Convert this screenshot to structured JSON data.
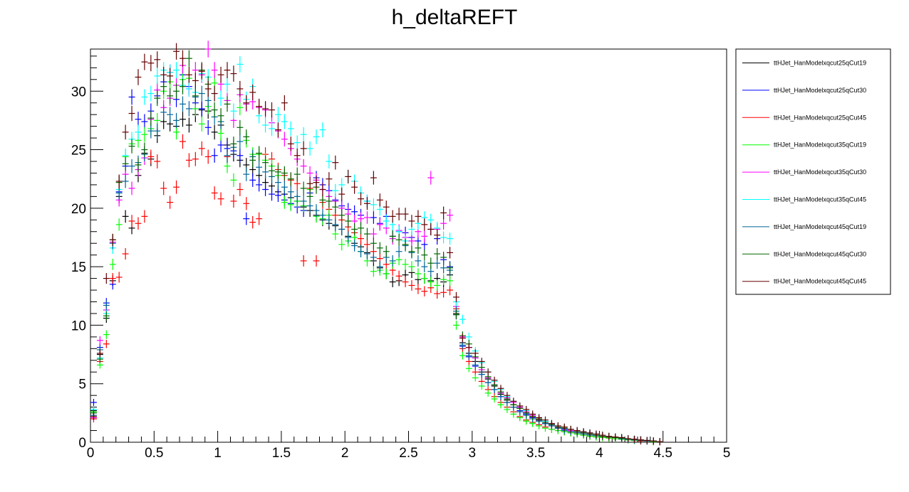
{
  "chart_data": {
    "type": "scatter",
    "title": "h_deltaREFT",
    "xlabel": "",
    "ylabel": "",
    "xlim": [
      0,
      5
    ],
    "ylim": [
      0,
      33.6
    ],
    "x_ticks": [
      "0",
      "0.5",
      "1",
      "1.5",
      "2",
      "2.5",
      "3",
      "3.5",
      "4",
      "4.5",
      "5"
    ],
    "y_ticks": [
      "0",
      "5",
      "10",
      "15",
      "20",
      "25",
      "30"
    ],
    "bin_width": 0.05,
    "error_bars": true,
    "grid": false,
    "legend_position": "right",
    "series": [
      {
        "name": "ttHJet_HanModelxqcut25qCut19",
        "color": "#000000",
        "values": [
          2.7,
          7.5,
          10.6,
          13.8,
          21.0,
          19.3,
          18.3,
          22.8,
          24.7,
          24.2,
          26.2,
          27.4,
          27.2,
          27.0,
          27.6,
          27.1,
          28.0,
          28.4,
          28.3,
          26.5,
          27.1,
          25.4,
          24.6,
          24.1,
          23.7,
          23.3,
          22.8,
          22.2,
          21.9,
          21.4,
          21.2,
          20.9,
          20.6,
          20.1,
          19.8,
          19.4,
          19.0,
          18.7,
          18.5,
          18.2,
          17.6,
          17.0,
          16.7,
          16.2,
          15.5,
          14.9,
          14.4,
          13.7,
          13.8,
          14.3,
          14.5,
          13.9,
          14.0,
          13.8,
          14.0,
          13.7,
          14.3,
          11.0,
          8.5,
          7.6,
          6.9,
          6.0,
          5.4,
          4.8,
          4.1,
          3.6,
          3.2,
          2.9,
          2.5,
          2.2,
          1.9,
          1.6,
          1.5,
          1.3,
          1.1,
          1.0,
          0.9,
          0.8,
          0.7,
          0.6,
          0.5,
          0.5,
          0.4,
          0.35,
          0.3,
          0.25,
          0.2,
          0.15,
          0.1,
          0.05
        ]
      },
      {
        "name": "ttHJet_HanModelxqcut25qCut30",
        "color": "#0000ff",
        "values": [
          3.4,
          8.1,
          11.9,
          13.5,
          21.4,
          23.6,
          29.5,
          27.6,
          27.4,
          28.3,
          29.6,
          30.8,
          31.6,
          29.3,
          31.4,
          30.4,
          29.0,
          28.5,
          26.9,
          24.5,
          25.4,
          25.1,
          24.9,
          24.5,
          19.1,
          22.4,
          22.0,
          21.6,
          21.2,
          21.1,
          20.7,
          20.4,
          20.1,
          19.8,
          21.3,
          22.6,
          22.0,
          21.5,
          20.7,
          20.2,
          19.9,
          19.7,
          19.4,
          20.6,
          19.2,
          18.7,
          19.3,
          17.6,
          18.0,
          17.9,
          17.5,
          17.2,
          16.9,
          18.2,
          17.4,
          15.6,
          15.0,
          10.9,
          8.2,
          7.3,
          6.5,
          5.8,
          5.1,
          4.5,
          3.9,
          3.4,
          3.0,
          2.7,
          2.4,
          2.1,
          1.8,
          1.6,
          1.4,
          1.2,
          1.1,
          1.0,
          0.9,
          0.8,
          0.7,
          0.6,
          0.5,
          0.45,
          0.4,
          0.3,
          0.25,
          0.2,
          0.2,
          0.15,
          0.1,
          0.05
        ]
      },
      {
        "name": "ttHJet_HanModelxqcut25qCut45",
        "color": "#ff0000",
        "values": [
          2.0,
          6.9,
          8.4,
          14.0,
          14.1,
          16.1,
          18.9,
          18.7,
          19.3,
          24.4,
          24.0,
          21.7,
          20.5,
          21.8,
          25.7,
          24.1,
          24.2,
          25.1,
          24.4,
          21.3,
          20.8,
          24.4,
          20.6,
          21.6,
          20.4,
          18.8,
          19.1,
          24.6,
          24.2,
          23.3,
          22.8,
          22.4,
          22.1,
          15.5,
          21.7,
          15.5,
          20.5,
          19.9,
          19.4,
          19.0,
          18.4,
          17.9,
          17.4,
          16.9,
          16.3,
          15.7,
          15.2,
          14.7,
          14.2,
          13.7,
          13.4,
          13.1,
          12.9,
          13.2,
          12.7,
          12.8,
          13.0,
          11.4,
          8.0,
          6.9,
          6.0,
          5.2,
          4.5,
          3.9,
          3.4,
          3.0,
          2.6,
          2.2,
          1.9,
          1.7,
          1.5,
          1.3,
          1.1,
          1.0,
          0.9,
          0.8,
          0.7,
          0.6,
          0.5,
          0.45,
          0.4,
          0.35,
          0.3,
          0.25,
          0.2,
          0.15,
          0.1,
          0.1,
          0.05,
          0.05
        ]
      },
      {
        "name": "ttHJet_HanModelxqcut35qCut19",
        "color": "#00ff00",
        "values": [
          2.6,
          6.6,
          9.2,
          15.2,
          18.6,
          24.4,
          25.5,
          25.8,
          26.3,
          26.8,
          27.5,
          30.0,
          30.8,
          26.5,
          31.0,
          31.1,
          28.5,
          27.2,
          28.7,
          30.7,
          26.4,
          23.6,
          22.4,
          28.6,
          25.8,
          24.6,
          24.6,
          24.1,
          23.6,
          22.8,
          20.5,
          20.3,
          20.6,
          20.2,
          21.6,
          19.3,
          19.1,
          19.4,
          17.8,
          16.9,
          17.2,
          17.5,
          16.3,
          15.5,
          14.6,
          14.7,
          14.4,
          15.3,
          15.6,
          15.2,
          15.0,
          14.4,
          14.0,
          13.7,
          13.4,
          13.9,
          13.8,
          10.0,
          7.4,
          6.3,
          5.5,
          4.8,
          4.2,
          3.7,
          3.2,
          2.8,
          2.4,
          2.1,
          1.8,
          1.6,
          1.4,
          1.2,
          1.1,
          1.0,
          0.9,
          0.8,
          0.7,
          0.6,
          0.5,
          0.45,
          0.4,
          0.35,
          0.3,
          0.25,
          0.2,
          0.15,
          0.15,
          0.1,
          0.05,
          0.05
        ]
      },
      {
        "name": "ttHJet_HanModelxqcut35qCut30",
        "color": "#ff00ff",
        "values": [
          2.1,
          8.7,
          11.3,
          17.1,
          20.7,
          22.9,
          21.7,
          23.3,
          24.3,
          27.6,
          30.1,
          28.6,
          29.4,
          30.5,
          32.2,
          30.2,
          31.8,
          31.4,
          33.6,
          31.8,
          30.6,
          29.2,
          27.5,
          29.7,
          28.9,
          29.1,
          28.6,
          28.4,
          27.3,
          26.6,
          25.9,
          25.1,
          24.2,
          23.6,
          23.0,
          22.4,
          21.6,
          21.0,
          20.6,
          20.0,
          19.5,
          18.9,
          19.1,
          19.2,
          17.8,
          18.6,
          18.3,
          17.4,
          18.1,
          17.5,
          17.2,
          18.0,
          17.6,
          22.6,
          18.2,
          18.7,
          19.4,
          11.6,
          9.0,
          8.1,
          7.2,
          6.2,
          5.5,
          4.9,
          4.2,
          3.8,
          3.4,
          3.0,
          2.6,
          2.3,
          2.0,
          1.7,
          1.5,
          1.3,
          1.2,
          1.0,
          0.9,
          0.8,
          0.7,
          0.6,
          0.5,
          0.45,
          0.4,
          0.3,
          0.25,
          0.2,
          0.2,
          0.15,
          0.1,
          0.05
        ]
      },
      {
        "name": "ttHJet_HanModelxqcut35qCut45",
        "color": "#00ffff",
        "values": [
          2.8,
          7.2,
          11.0,
          16.6,
          21.6,
          24.5,
          25.9,
          26.5,
          29.5,
          29.8,
          31.3,
          31.8,
          31.6,
          31.8,
          30.5,
          30.2,
          29.9,
          31.5,
          31.2,
          29.8,
          29.4,
          30.6,
          28.3,
          32.3,
          29.3,
          30.4,
          27.9,
          27.1,
          26.8,
          28.0,
          27.4,
          26.8,
          25.6,
          26.3,
          25.1,
          26.1,
          26.7,
          24.0,
          21.5,
          22.0,
          22.7,
          22.3,
          21.3,
          20.6,
          20.3,
          19.9,
          18.9,
          18.6,
          18.0,
          17.2,
          18.2,
          18.7,
          19.2,
          19.0,
          18.3,
          17.5,
          17.4,
          12.0,
          10.5,
          9.0,
          7.8,
          6.8,
          6.0,
          5.2,
          4.5,
          3.9,
          3.5,
          3.1,
          2.7,
          2.4,
          2.1,
          1.8,
          1.6,
          1.4,
          1.2,
          1.1,
          1.0,
          0.9,
          0.8,
          0.7,
          0.6,
          0.5,
          0.45,
          0.4,
          0.3,
          0.25,
          0.2,
          0.15,
          0.1,
          0.05
        ]
      },
      {
        "name": "ttHJet_HanModelxqcut45qCut19",
        "color": "#006699",
        "values": [
          2.3,
          7.9,
          11.7,
          17.0,
          21.3,
          22.3,
          23.6,
          23.9,
          24.6,
          26.6,
          26.6,
          28.2,
          28.0,
          27.5,
          28.9,
          28.5,
          29.5,
          29.8,
          29.2,
          27.8,
          27.4,
          24.5,
          25.2,
          25.7,
          22.9,
          24.4,
          23.5,
          23.1,
          22.7,
          22.2,
          21.8,
          21.4,
          21.0,
          20.6,
          20.2,
          19.8,
          19.4,
          19.0,
          18.6,
          18.2,
          17.5,
          16.8,
          16.3,
          16.1,
          15.8,
          15.0,
          15.8,
          15.5,
          16.3,
          16.8,
          16.2,
          15.5,
          15.0,
          14.6,
          15.3,
          14.9,
          14.7,
          11.2,
          8.3,
          7.4,
          6.6,
          5.8,
          5.1,
          4.5,
          3.9,
          3.4,
          3.0,
          2.6,
          2.3,
          2.0,
          1.8,
          1.6,
          1.4,
          1.2,
          1.0,
          0.9,
          0.8,
          0.7,
          0.6,
          0.55,
          0.5,
          0.45,
          0.4,
          0.3,
          0.25,
          0.2,
          0.15,
          0.1,
          0.1,
          0.05
        ]
      },
      {
        "name": "ttHJet_HanModelxqcut45qCut30",
        "color": "#006600",
        "values": [
          2.5,
          7.1,
          10.8,
          17.3,
          22.2,
          23.8,
          25.3,
          23.7,
          25.0,
          27.7,
          29.4,
          30.4,
          29.6,
          30.0,
          30.4,
          32.8,
          29.6,
          31.8,
          30.6,
          28.4,
          27.9,
          28.9,
          25.5,
          26.9,
          26.1,
          24.1,
          24.7,
          23.9,
          23.2,
          23.1,
          23.0,
          22.5,
          22.9,
          21.7,
          21.0,
          21.8,
          20.7,
          20.6,
          20.1,
          19.4,
          18.9,
          18.2,
          18.3,
          17.8,
          17.0,
          16.6,
          16.3,
          17.6,
          17.3,
          16.9,
          16.3,
          16.6,
          16.0,
          15.3,
          16.1,
          15.8,
          14.9,
          10.9,
          9.1,
          8.4,
          7.3,
          6.4,
          5.6,
          4.9,
          4.3,
          3.7,
          3.2,
          2.9,
          2.5,
          2.2,
          2.0,
          1.7,
          1.5,
          1.3,
          1.2,
          1.1,
          0.9,
          0.8,
          0.7,
          0.6,
          0.5,
          0.45,
          0.4,
          0.35,
          0.3,
          0.25,
          0.2,
          0.15,
          0.1,
          0.05
        ]
      },
      {
        "name": "ttHJet_HanModelxqcut45qCut45",
        "color": "#660000",
        "values": [
          2.2,
          7.6,
          14.0,
          17.3,
          22.3,
          26.5,
          28.1,
          31.2,
          32.5,
          32.4,
          32.7,
          31.4,
          31.3,
          33.4,
          32.8,
          31.4,
          30.9,
          31.7,
          30.2,
          29.8,
          31.4,
          31.8,
          31.5,
          30.2,
          29.0,
          29.9,
          28.7,
          28.5,
          28.4,
          26.7,
          29.0,
          25.5,
          24.5,
          25.1,
          22.1,
          22.2,
          21.6,
          22.5,
          23.9,
          21.2,
          22.7,
          21.8,
          20.8,
          20.4,
          22.6,
          20.7,
          20.1,
          19.3,
          19.5,
          19.5,
          18.9,
          19.3,
          18.6,
          18.2,
          17.7,
          19.6,
          16.2,
          12.4,
          8.9,
          8.1,
          7.6,
          6.9,
          6.0,
          5.3,
          4.6,
          4.0,
          3.5,
          3.1,
          2.8,
          2.4,
          2.1,
          1.9,
          1.6,
          1.4,
          1.3,
          1.1,
          1.0,
          0.9,
          0.8,
          0.7,
          0.6,
          0.5,
          0.45,
          0.4,
          0.3,
          0.25,
          0.2,
          0.15,
          0.1,
          0.05
        ]
      }
    ]
  }
}
